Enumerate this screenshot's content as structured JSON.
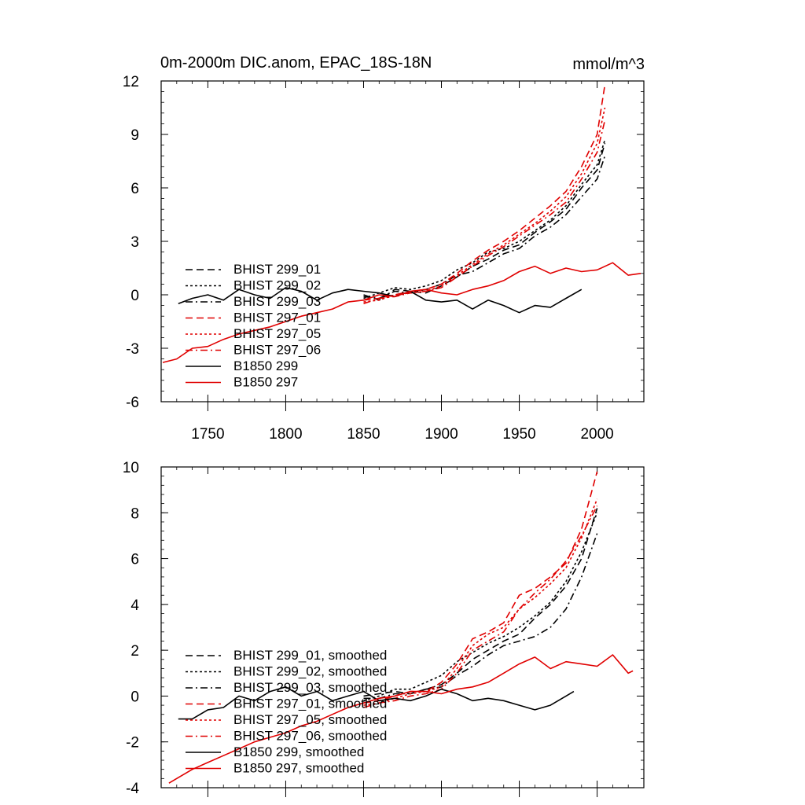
{
  "chart_data": [
    {
      "type": "line",
      "title": "0m-2000m DIC.anom, EPAC_18S-18N",
      "units": "mmol/m^3",
      "xlabel": "",
      "ylabel": "",
      "xlim": [
        1720,
        2030
      ],
      "ylim": [
        -6,
        12
      ],
      "xticks": [
        1750,
        1800,
        1850,
        1900,
        1950,
        2000
      ],
      "yticks": [
        -6,
        -3,
        0,
        3,
        6,
        9,
        12
      ],
      "grid": false,
      "legend_position": "lower-left",
      "series": [
        {
          "name": "BHIST 299_01",
          "color": "#000000",
          "dash": "dash",
          "x": [
            1850,
            1860,
            1870,
            1880,
            1890,
            1900,
            1910,
            1920,
            1930,
            1940,
            1950,
            1960,
            1970,
            1980,
            1990,
            2000,
            2005
          ],
          "y": [
            0.0,
            -0.3,
            0.3,
            0.2,
            0.1,
            0.5,
            1.0,
            1.6,
            2.0,
            2.5,
            2.8,
            3.5,
            4.1,
            4.8,
            6.0,
            7.0,
            8.5
          ]
        },
        {
          "name": "BHIST 299_02",
          "color": "#000000",
          "dash": "dot",
          "x": [
            1850,
            1860,
            1870,
            1880,
            1890,
            1900,
            1910,
            1920,
            1930,
            1940,
            1950,
            1960,
            1970,
            1980,
            1990,
            2000,
            2005
          ],
          "y": [
            -0.2,
            0.1,
            0.4,
            0.3,
            0.5,
            0.8,
            1.4,
            1.8,
            2.4,
            2.6,
            3.0,
            3.6,
            4.2,
            5.0,
            6.2,
            7.3,
            8.7
          ]
        },
        {
          "name": "BHIST 299_03",
          "color": "#000000",
          "dash": "dashdot",
          "x": [
            1850,
            1860,
            1870,
            1880,
            1890,
            1900,
            1910,
            1920,
            1930,
            1940,
            1950,
            1960,
            1970,
            1980,
            1990,
            2000,
            2005
          ],
          "y": [
            -0.1,
            -0.2,
            0.2,
            0.1,
            0.3,
            0.6,
            1.1,
            1.3,
            1.8,
            2.3,
            2.6,
            3.3,
            3.8,
            4.5,
            5.5,
            6.5,
            7.8
          ]
        },
        {
          "name": "BHIST 297_01",
          "color": "#e00000",
          "dash": "dash",
          "x": [
            1850,
            1860,
            1870,
            1880,
            1890,
            1900,
            1910,
            1920,
            1930,
            1940,
            1950,
            1960,
            1970,
            1980,
            1990,
            2000,
            2005
          ],
          "y": [
            -0.3,
            -0.2,
            0.0,
            0.2,
            0.3,
            0.6,
            1.2,
            1.9,
            2.5,
            3.0,
            3.6,
            4.3,
            5.0,
            5.8,
            7.2,
            9.0,
            11.8
          ]
        },
        {
          "name": "BHIST 297_05",
          "color": "#e00000",
          "dash": "dot",
          "x": [
            1850,
            1860,
            1870,
            1880,
            1890,
            1900,
            1910,
            1920,
            1930,
            1940,
            1950,
            1960,
            1970,
            1980,
            1990,
            2000,
            2005
          ],
          "y": [
            -0.4,
            -0.3,
            0.0,
            0.1,
            0.2,
            0.5,
            1.1,
            1.7,
            2.3,
            2.8,
            3.4,
            4.0,
            4.7,
            5.5,
            6.8,
            8.5,
            10.5
          ]
        },
        {
          "name": "BHIST 297_06",
          "color": "#e00000",
          "dash": "dashdot",
          "x": [
            1850,
            1860,
            1870,
            1880,
            1890,
            1900,
            1910,
            1920,
            1930,
            1940,
            1950,
            1960,
            1970,
            1980,
            1990,
            2000,
            2005
          ],
          "y": [
            -0.5,
            -0.2,
            -0.1,
            0.1,
            0.2,
            0.4,
            1.0,
            1.6,
            2.2,
            2.7,
            3.3,
            3.9,
            4.5,
            5.2,
            6.5,
            8.0,
            9.8
          ]
        },
        {
          "name": "B1850 299",
          "color": "#000000",
          "dash": "solid",
          "x": [
            1731,
            1740,
            1750,
            1760,
            1770,
            1780,
            1790,
            1800,
            1810,
            1820,
            1830,
            1840,
            1850,
            1860,
            1870,
            1880,
            1890,
            1900,
            1910,
            1920,
            1930,
            1940,
            1950,
            1960,
            1970,
            1980,
            1990
          ],
          "y": [
            -0.5,
            -0.2,
            0.0,
            -0.3,
            0.3,
            0.0,
            -0.2,
            0.4,
            0.2,
            -0.3,
            0.1,
            0.3,
            0.2,
            0.1,
            -0.1,
            0.2,
            -0.3,
            -0.4,
            -0.3,
            -0.8,
            -0.3,
            -0.6,
            -1.0,
            -0.6,
            -0.7,
            -0.2,
            0.3
          ]
        },
        {
          "name": "B1850 297",
          "color": "#e00000",
          "dash": "solid",
          "x": [
            1721,
            1730,
            1740,
            1750,
            1760,
            1770,
            1780,
            1790,
            1800,
            1810,
            1820,
            1830,
            1840,
            1850,
            1860,
            1870,
            1880,
            1890,
            1900,
            1910,
            1920,
            1930,
            1940,
            1950,
            1960,
            1970,
            1980,
            1990,
            2000,
            2010,
            2020,
            2028
          ],
          "y": [
            -3.8,
            -3.6,
            -3.0,
            -2.9,
            -2.5,
            -2.2,
            -2.0,
            -1.8,
            -1.5,
            -1.2,
            -1.0,
            -0.8,
            -0.4,
            -0.3,
            0.0,
            -0.1,
            0.2,
            0.3,
            0.1,
            0.0,
            0.3,
            0.5,
            0.8,
            1.3,
            1.6,
            1.2,
            1.5,
            1.3,
            1.4,
            1.8,
            1.1,
            1.2
          ]
        }
      ]
    },
    {
      "type": "line",
      "title": "",
      "xlabel": "",
      "ylabel": "",
      "xlim": [
        1720,
        2030
      ],
      "ylim": [
        -4,
        10
      ],
      "xticks": [
        1750,
        1800,
        1850,
        1900,
        1950,
        2000
      ],
      "yticks": [
        -4,
        -2,
        0,
        2,
        4,
        6,
        8,
        10
      ],
      "grid": false,
      "legend_position": "lower-left",
      "series": [
        {
          "name": "BHIST 299_01, smoothed",
          "color": "#000000",
          "dash": "dash",
          "x": [
            1850,
            1860,
            1870,
            1880,
            1890,
            1900,
            1910,
            1920,
            1930,
            1940,
            1950,
            1960,
            1970,
            1980,
            1990,
            2000
          ],
          "y": [
            0.0,
            0.1,
            0.2,
            0.1,
            0.3,
            0.5,
            1.0,
            1.6,
            2.0,
            2.4,
            2.7,
            3.4,
            4.0,
            4.8,
            6.0,
            8.2
          ]
        },
        {
          "name": "BHIST 299_02, smoothed",
          "color": "#000000",
          "dash": "dot",
          "x": [
            1850,
            1860,
            1870,
            1880,
            1890,
            1900,
            1910,
            1920,
            1930,
            1940,
            1950,
            1960,
            1970,
            1980,
            1990,
            2000
          ],
          "y": [
            -0.2,
            0.0,
            0.3,
            0.3,
            0.6,
            0.9,
            1.5,
            1.9,
            2.3,
            2.6,
            3.0,
            3.5,
            4.1,
            5.0,
            6.3,
            8.0
          ]
        },
        {
          "name": "BHIST 299_03, smoothed",
          "color": "#000000",
          "dash": "dashdot",
          "x": [
            1850,
            1860,
            1870,
            1880,
            1890,
            1900,
            1910,
            1920,
            1930,
            1940,
            1950,
            1960,
            1970,
            1980,
            1990,
            2000
          ],
          "y": [
            -0.1,
            -0.1,
            0.1,
            0.1,
            0.3,
            0.4,
            0.9,
            1.3,
            1.8,
            2.2,
            2.4,
            2.6,
            3.0,
            3.8,
            5.2,
            7.1
          ]
        },
        {
          "name": "BHIST 297_01, smoothed",
          "color": "#e00000",
          "dash": "dash",
          "x": [
            1850,
            1860,
            1870,
            1880,
            1890,
            1900,
            1910,
            1920,
            1930,
            1940,
            1950,
            1960,
            1970,
            1980,
            1990,
            2000
          ],
          "y": [
            -0.3,
            -0.2,
            0.0,
            0.2,
            0.2,
            0.6,
            1.4,
            2.5,
            2.8,
            3.2,
            4.4,
            4.7,
            5.2,
            5.8,
            7.3,
            9.8
          ]
        },
        {
          "name": "BHIST 297_05, smoothed",
          "color": "#e00000",
          "dash": "dot",
          "x": [
            1850,
            1860,
            1870,
            1880,
            1890,
            1900,
            1910,
            1920,
            1930,
            1940,
            1950,
            1960,
            1970,
            1980,
            1990,
            2000
          ],
          "y": [
            -0.4,
            -0.3,
            -0.1,
            0.1,
            0.2,
            0.4,
            1.2,
            2.2,
            2.7,
            3.0,
            3.8,
            4.3,
            4.9,
            5.6,
            6.9,
            8.6
          ]
        },
        {
          "name": "BHIST 297_06, smoothed",
          "color": "#e00000",
          "dash": "dashdot",
          "x": [
            1850,
            1860,
            1870,
            1880,
            1890,
            1900,
            1910,
            1920,
            1930,
            1940,
            1950,
            1960,
            1970,
            1980,
            1990,
            2000
          ],
          "y": [
            -0.5,
            -0.3,
            -0.2,
            0.0,
            0.1,
            0.3,
            1.0,
            2.0,
            2.4,
            2.8,
            3.8,
            4.5,
            5.1,
            5.9,
            7.0,
            8.3
          ]
        },
        {
          "name": "B1850 299, smoothed",
          "color": "#000000",
          "dash": "solid",
          "x": [
            1731,
            1740,
            1750,
            1760,
            1770,
            1780,
            1790,
            1800,
            1810,
            1820,
            1830,
            1840,
            1850,
            1860,
            1870,
            1880,
            1890,
            1900,
            1910,
            1920,
            1930,
            1940,
            1950,
            1960,
            1970,
            1980,
            1985
          ],
          "y": [
            -1.0,
            -1.0,
            -0.6,
            -0.5,
            0.0,
            -0.2,
            0.2,
            0.4,
            0.0,
            0.2,
            -0.2,
            0.0,
            0.2,
            -0.2,
            -0.1,
            -0.2,
            0.0,
            0.3,
            0.1,
            -0.2,
            -0.1,
            -0.2,
            -0.4,
            -0.6,
            -0.4,
            0.0,
            0.2
          ]
        },
        {
          "name": "B1850 297, smoothed",
          "color": "#e00000",
          "dash": "solid",
          "x": [
            1725,
            1730,
            1740,
            1750,
            1760,
            1770,
            1780,
            1790,
            1800,
            1810,
            1820,
            1830,
            1840,
            1850,
            1860,
            1870,
            1880,
            1890,
            1900,
            1910,
            1920,
            1930,
            1940,
            1950,
            1960,
            1970,
            1980,
            1990,
            2000,
            2010,
            2020,
            2023
          ],
          "y": [
            -3.8,
            -3.6,
            -3.2,
            -2.9,
            -2.6,
            -2.3,
            -2.0,
            -1.8,
            -1.6,
            -1.3,
            -1.1,
            -0.8,
            -0.5,
            -0.3,
            -0.1,
            0.0,
            0.2,
            0.2,
            0.1,
            0.3,
            0.4,
            0.6,
            1.0,
            1.4,
            1.7,
            1.2,
            1.5,
            1.4,
            1.3,
            1.8,
            1.0,
            1.1
          ]
        }
      ]
    }
  ]
}
